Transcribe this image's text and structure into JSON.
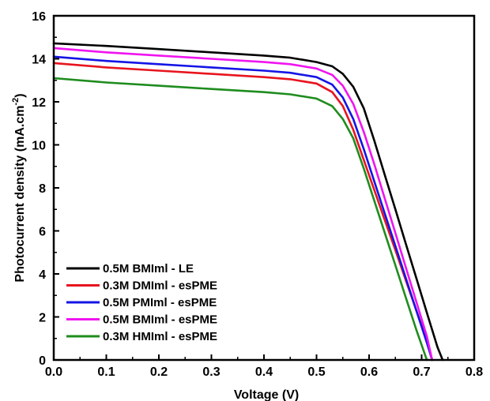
{
  "chart_data": {
    "type": "line",
    "xlabel": "Voltage (V)",
    "ylabel": "Photocurrent density (mA.cm",
    "ylabel_sup": "-2",
    "ylabel_close": ")",
    "xlim": [
      0.0,
      0.8
    ],
    "ylim": [
      0,
      16
    ],
    "xticks": [
      "0.0",
      "0.1",
      "0.2",
      "0.3",
      "0.4",
      "0.5",
      "0.6",
      "0.7",
      "0.8"
    ],
    "yticks": [
      "0",
      "2",
      "4",
      "6",
      "8",
      "10",
      "12",
      "14",
      "16"
    ],
    "grid": false,
    "legend_position": "bottom-left",
    "series": [
      {
        "name": "0.5M BMIml - LE",
        "color": "#000000",
        "x": [
          0.0,
          0.1,
          0.2,
          0.3,
          0.4,
          0.45,
          0.5,
          0.53,
          0.55,
          0.57,
          0.59,
          0.61,
          0.63,
          0.65,
          0.67,
          0.69,
          0.71,
          0.73,
          0.74
        ],
        "y": [
          14.72,
          14.6,
          14.45,
          14.3,
          14.15,
          14.05,
          13.85,
          13.65,
          13.3,
          12.7,
          11.7,
          10.2,
          8.6,
          7.0,
          5.4,
          3.8,
          2.2,
          0.6,
          0.0
        ]
      },
      {
        "name": "0.3M DMIml - esPME",
        "color": "#e8141e",
        "x": [
          0.0,
          0.1,
          0.2,
          0.3,
          0.4,
          0.45,
          0.5,
          0.53,
          0.55,
          0.57,
          0.59,
          0.61,
          0.63,
          0.65,
          0.67,
          0.69,
          0.71,
          0.72
        ],
        "y": [
          13.8,
          13.6,
          13.45,
          13.3,
          13.15,
          13.05,
          12.85,
          12.45,
          11.8,
          10.7,
          9.3,
          7.9,
          6.5,
          5.1,
          3.7,
          2.3,
          0.9,
          0.0
        ]
      },
      {
        "name": "0.5M PMIml - esPME",
        "color": "#1414e6",
        "x": [
          0.0,
          0.1,
          0.2,
          0.3,
          0.4,
          0.45,
          0.5,
          0.53,
          0.55,
          0.57,
          0.59,
          0.61,
          0.63,
          0.65,
          0.67,
          0.69,
          0.71,
          0.72
        ],
        "y": [
          14.1,
          13.9,
          13.75,
          13.6,
          13.45,
          13.35,
          13.15,
          12.8,
          12.2,
          11.2,
          9.8,
          8.3,
          6.8,
          5.3,
          3.8,
          2.3,
          0.8,
          0.0
        ]
      },
      {
        "name": "0.5M BMIml - esPME",
        "color": "#f014f0",
        "x": [
          0.0,
          0.1,
          0.2,
          0.3,
          0.4,
          0.45,
          0.5,
          0.53,
          0.55,
          0.57,
          0.59,
          0.61,
          0.63,
          0.65,
          0.67,
          0.69,
          0.71,
          0.72
        ],
        "y": [
          14.5,
          14.3,
          14.15,
          14.0,
          13.85,
          13.75,
          13.55,
          13.25,
          12.75,
          11.9,
          10.6,
          9.1,
          7.5,
          5.9,
          4.3,
          2.7,
          1.1,
          0.0
        ]
      },
      {
        "name": "0.3M HMIml - esPME",
        "color": "#1e8c1e",
        "x": [
          0.0,
          0.1,
          0.2,
          0.3,
          0.4,
          0.45,
          0.5,
          0.53,
          0.55,
          0.57,
          0.59,
          0.61,
          0.63,
          0.65,
          0.67,
          0.69,
          0.71
        ],
        "y": [
          13.1,
          12.9,
          12.75,
          12.6,
          12.45,
          12.35,
          12.15,
          11.8,
          11.2,
          10.3,
          8.9,
          7.4,
          5.9,
          4.4,
          2.9,
          1.4,
          0.0
        ]
      }
    ]
  }
}
